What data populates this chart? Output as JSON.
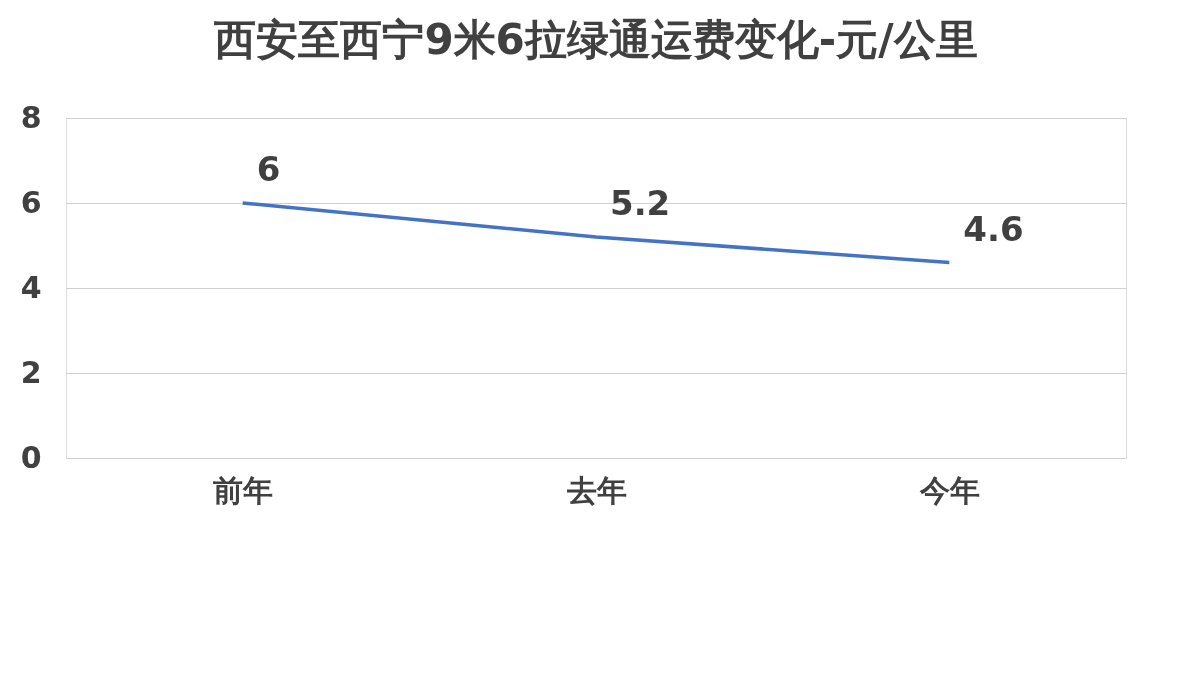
{
  "chart_data": {
    "type": "line",
    "title": "西安至西宁9米6拉绿通运费变化-元/公里",
    "categories": [
      "前年",
      "去年",
      "今年"
    ],
    "series": [
      {
        "color": "#4472c4",
        "values": [
          6,
          5.2,
          4.6
        ]
      }
    ],
    "ylim": [
      0,
      8
    ],
    "yticks": [
      0,
      2,
      4,
      6,
      8
    ],
    "grid": "y",
    "data_labels": true,
    "legend": false,
    "marker": "none"
  }
}
